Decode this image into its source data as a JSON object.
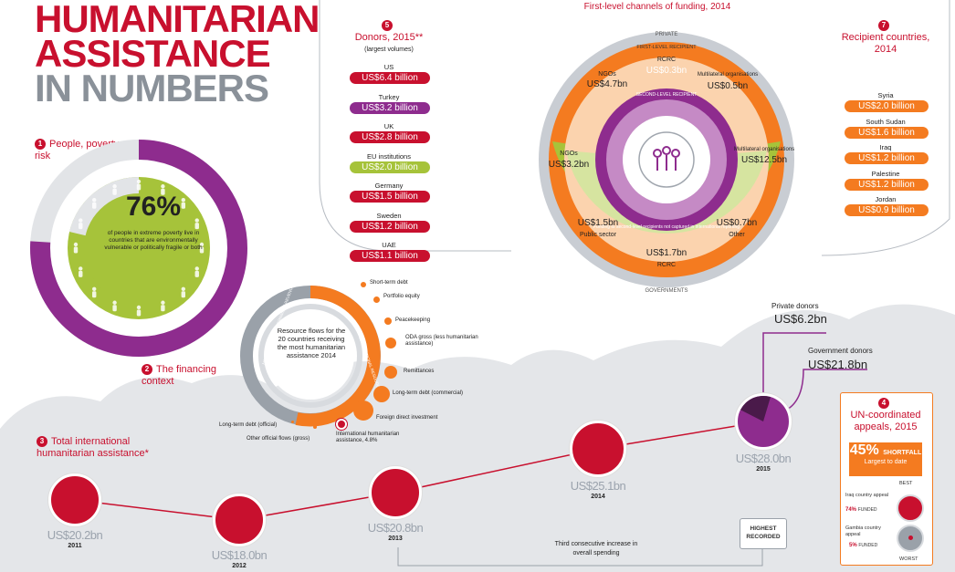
{
  "header": {
    "line1": "HUMANITARIAN",
    "line2": "ASSISTANCE",
    "line3": "IN NUMBERS"
  },
  "sections": {
    "s1": {
      "num": "1",
      "title": "People, poverty and risk"
    },
    "s2": {
      "num": "2",
      "title": "The financing context"
    },
    "s3": {
      "num": "3",
      "title": "Total international humanitarian assistance*"
    },
    "s4": {
      "num": "4",
      "title": "UN-coordinated appeals, 2015"
    },
    "s5": {
      "num": "5",
      "title": "Donors, 2015**",
      "subtitle": "(largest volumes)"
    },
    "s6": {
      "title": "First-level channels of funding, 2014"
    },
    "s7": {
      "num": "7",
      "title": "Recipient countries, 2014"
    }
  },
  "poverty": {
    "percent": "76%",
    "caption": "of people in extreme poverty live in countries that are environmentally vulnerable or politically fragile or both",
    "share": 0.76
  },
  "donors": [
    {
      "name": "US",
      "amount": "US$6.4 billion",
      "color": "#c8102e"
    },
    {
      "name": "Turkey",
      "amount": "US$3.2 billion",
      "color": "#8e2c8e"
    },
    {
      "name": "UK",
      "amount": "US$2.8 billion",
      "color": "#c8102e"
    },
    {
      "name": "EU institutions",
      "amount": "US$2.0 billion",
      "color": "#a6c33a"
    },
    {
      "name": "Germany",
      "amount": "US$1.5 billion",
      "color": "#c8102e"
    },
    {
      "name": "Sweden",
      "amount": "US$1.2 billion",
      "color": "#c8102e"
    },
    {
      "name": "UAE",
      "amount": "US$1.1 billion",
      "color": "#c8102e"
    }
  ],
  "recipients": [
    {
      "name": "Syria",
      "amount": "US$2.0 billion"
    },
    {
      "name": "South Sudan",
      "amount": "US$1.6 billion"
    },
    {
      "name": "Iraq",
      "amount": "US$1.2 billion"
    },
    {
      "name": "Palestine",
      "amount": "US$1.2 billion"
    },
    {
      "name": "Jordan",
      "amount": "US$0.9 billion"
    }
  ],
  "channels": {
    "private": "PRIVATE",
    "governments": "GOVERNMENTS",
    "first_level": "FIRST-LEVEL RECIPIENT",
    "second_level": "SECOND-LEVEL RECIPIENT",
    "inner_note": "Funding to second-level recipients not captured in international reporting",
    "top": [
      {
        "name": "NGOs",
        "amount": "US$4.7bn"
      },
      {
        "name": "RCRC",
        "amount": "US$0.3bn"
      },
      {
        "name": "Multilateral organisations",
        "amount": "US$0.5bn"
      }
    ],
    "bottom": [
      {
        "name": "NGOs",
        "amount": "US$3.2bn"
      },
      {
        "name": "Public sector",
        "amount": "US$1.5bn"
      },
      {
        "name": "RCRC",
        "amount": "US$1.7bn"
      },
      {
        "name": "Other",
        "amount": "US$0.7bn"
      },
      {
        "name": "Multilateral organisations",
        "amount": "US$12.5bn"
      }
    ]
  },
  "financing": {
    "center_text": "Resource flows for the 20 countries receiving the most humanitarian assistance 2014",
    "arc_gray": "NON-AID FLOWS GOVERNMENT REVENUE",
    "arc_orange": "INTERNATIONAL RESOURCES",
    "flows": [
      {
        "label": "Short-term debt"
      },
      {
        "label": "Portfolio equity"
      },
      {
        "label": "Peacekeeping"
      },
      {
        "label": "ODA gross (less humanitarian assistance)"
      },
      {
        "label": "Remittances"
      },
      {
        "label": "Long-term debt (commercial)"
      },
      {
        "label": "Foreign direct investment"
      },
      {
        "label": "International humanitarian assistance, 4.8%"
      },
      {
        "label": "Other official flows (gross)"
      },
      {
        "label": "Long-term debt (official)"
      }
    ]
  },
  "timeline": [
    {
      "amount": "US$20.2bn",
      "year": "2011"
    },
    {
      "amount": "US$18.0bn",
      "year": "2012"
    },
    {
      "amount": "US$20.8bn",
      "year": "2013"
    },
    {
      "amount": "US$25.1bn",
      "year": "2014"
    },
    {
      "amount": "US$28.0bn",
      "year": "2015"
    }
  ],
  "split_2015": {
    "private_label": "Private donors",
    "private_amount": "US$6.2bn",
    "gov_label": "Government donors",
    "gov_amount": "US$21.8bn"
  },
  "highest": "HIGHEST RECORDED",
  "third_consecutive": "Third consecutive increase in overall spending",
  "appeals": {
    "shortfall_big": "45%",
    "shortfall_word": "SHORTFALL",
    "shortfall_sub": "Largest to date",
    "best": "BEST",
    "worst": "WORST",
    "iraq_name": "Iraq country appeal",
    "iraq_pct": "74%",
    "iraq_funded": "FUNDED",
    "gambia_name": "Gambia country appeal",
    "gambia_pct": "5%",
    "gambia_funded": "FUNDED"
  },
  "colors": {
    "red": "#c8102e",
    "purple": "#8e2c8e",
    "green": "#a6c33a",
    "orange": "#f47b20",
    "gray": "#c9cdd3"
  }
}
